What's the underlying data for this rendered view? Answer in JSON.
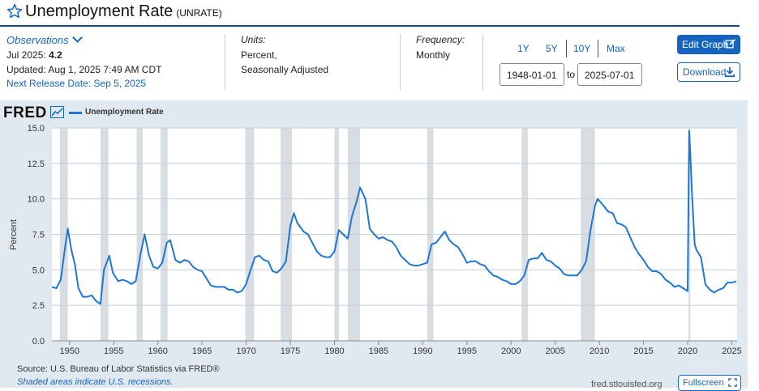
{
  "header": {
    "title": "Unemployment Rate",
    "series_code": "(UNRATE)"
  },
  "observations": {
    "label": "Observations",
    "latest_period": "Jul 2025:",
    "latest_value": "4.2",
    "updated": "Updated: Aug 1, 2025 7:49 AM CDT",
    "next_release": "Next Release Date: Sep 5, 2025"
  },
  "units": {
    "label": "Units:",
    "line1": "Percent,",
    "line2": "Seasonally Adjusted"
  },
  "frequency": {
    "label": "Frequency:",
    "value": "Monthly"
  },
  "range": {
    "buttons": [
      "1Y",
      "5Y",
      "10Y",
      "Max"
    ],
    "start": "1948-01-01",
    "to": "to",
    "end": "2025-07-01"
  },
  "actions": {
    "edit_label": "Edit Graph",
    "download_label": "Download",
    "fullscreen_label": "Fullscreen"
  },
  "footer": {
    "source": "Source: U.S. Bureau of Labor Statistics via FRED®",
    "shaded_note": "Shaded areas indicate U.S. recessions.",
    "site": "fred.stlouisfed.org"
  },
  "logo": "FRED",
  "colors": {
    "line": "#1f77d4",
    "accent": "#1565c0",
    "panel": "#e1e9f0",
    "recession": "#d8dde2"
  },
  "chart_data": {
    "type": "line",
    "ylabel": "Percent",
    "ylim": [
      0,
      15
    ],
    "xlim": [
      1948.0,
      2025.6
    ],
    "y_ticks": [
      "0.0",
      "2.5",
      "5.0",
      "7.5",
      "10.0",
      "12.5",
      "15.0"
    ],
    "x_ticks": [
      "1950",
      "1955",
      "1960",
      "1965",
      "1970",
      "1975",
      "1980",
      "1985",
      "1990",
      "1995",
      "2000",
      "2005",
      "2010",
      "2015",
      "2020",
      "2025"
    ],
    "grid": "horizontal",
    "legend": "top-left",
    "recessions": [
      [
        1948.9,
        1949.8
      ],
      [
        1953.5,
        1954.4
      ],
      [
        1957.6,
        1958.3
      ],
      [
        1960.3,
        1961.1
      ],
      [
        1969.9,
        1970.9
      ],
      [
        1973.9,
        1975.2
      ],
      [
        1980.0,
        1980.5
      ],
      [
        1981.5,
        1982.9
      ],
      [
        1990.5,
        1991.2
      ],
      [
        2001.2,
        2001.9
      ],
      [
        2007.9,
        2009.5
      ],
      [
        2020.1,
        2020.3
      ]
    ],
    "series": [
      {
        "name": "Unemployment Rate",
        "x": [
          1948.0,
          1948.5,
          1949.0,
          1949.5,
          1949.8,
          1950.2,
          1950.6,
          1951.0,
          1951.5,
          1952.0,
          1952.5,
          1953.0,
          1953.5,
          1953.9,
          1954.5,
          1954.9,
          1955.5,
          1956.0,
          1956.5,
          1957.0,
          1957.5,
          1958.0,
          1958.5,
          1959.0,
          1959.5,
          1960.0,
          1960.5,
          1961.0,
          1961.4,
          1962.0,
          1962.5,
          1963.0,
          1963.5,
          1964.0,
          1964.5,
          1965.0,
          1965.5,
          1966.0,
          1966.5,
          1967.0,
          1967.5,
          1968.0,
          1968.5,
          1969.0,
          1969.5,
          1970.0,
          1970.5,
          1971.0,
          1971.5,
          1972.0,
          1972.5,
          1973.0,
          1973.5,
          1974.0,
          1974.5,
          1975.0,
          1975.4,
          1975.8,
          1976.5,
          1977.0,
          1977.5,
          1978.0,
          1978.5,
          1979.0,
          1979.5,
          1980.0,
          1980.5,
          1981.0,
          1981.5,
          1982.0,
          1982.5,
          1982.9,
          1983.5,
          1984.0,
          1984.5,
          1985.0,
          1985.5,
          1986.0,
          1986.5,
          1987.0,
          1987.5,
          1988.0,
          1988.5,
          1989.0,
          1989.5,
          1990.0,
          1990.5,
          1991.0,
          1991.5,
          1992.0,
          1992.5,
          1993.0,
          1993.5,
          1994.0,
          1994.5,
          1995.0,
          1995.5,
          1996.0,
          1996.5,
          1997.0,
          1997.5,
          1998.0,
          1998.5,
          1999.0,
          1999.5,
          2000.0,
          2000.5,
          2001.0,
          2001.5,
          2002.0,
          2002.5,
          2003.0,
          2003.5,
          2004.0,
          2004.5,
          2005.0,
          2005.5,
          2006.0,
          2006.5,
          2007.0,
          2007.5,
          2008.0,
          2008.5,
          2009.0,
          2009.5,
          2009.8,
          2010.5,
          2011.0,
          2011.5,
          2012.0,
          2012.5,
          2013.0,
          2013.5,
          2014.0,
          2014.5,
          2015.0,
          2015.5,
          2016.0,
          2016.5,
          2017.0,
          2017.5,
          2018.0,
          2018.5,
          2019.0,
          2019.5,
          2020.0,
          2020.17,
          2020.3,
          2020.5,
          2020.8,
          2021.0,
          2021.5,
          2022.0,
          2022.5,
          2023.0,
          2023.5,
          2024.0,
          2024.5,
          2025.0,
          2025.5
        ],
        "values": [
          3.8,
          3.7,
          4.3,
          6.6,
          7.9,
          6.4,
          5.4,
          3.7,
          3.1,
          3.1,
          3.2,
          2.8,
          2.6,
          5.0,
          6.0,
          4.8,
          4.2,
          4.3,
          4.2,
          4.0,
          4.2,
          6.0,
          7.5,
          6.0,
          5.2,
          5.1,
          5.5,
          6.9,
          7.1,
          5.7,
          5.5,
          5.7,
          5.6,
          5.2,
          5.0,
          4.9,
          4.4,
          3.9,
          3.8,
          3.8,
          3.8,
          3.6,
          3.6,
          3.4,
          3.5,
          4.0,
          5.0,
          5.9,
          6.0,
          5.7,
          5.6,
          4.9,
          4.8,
          5.1,
          5.6,
          8.1,
          9.0,
          8.3,
          7.7,
          7.5,
          6.9,
          6.3,
          6.0,
          5.9,
          5.9,
          6.3,
          7.8,
          7.5,
          7.2,
          8.8,
          9.8,
          10.8,
          10.0,
          7.9,
          7.5,
          7.2,
          7.3,
          7.1,
          7.0,
          6.6,
          6.0,
          5.7,
          5.4,
          5.3,
          5.3,
          5.4,
          5.5,
          6.8,
          6.9,
          7.3,
          7.7,
          7.1,
          6.8,
          6.6,
          6.1,
          5.5,
          5.6,
          5.6,
          5.4,
          5.3,
          4.9,
          4.6,
          4.5,
          4.3,
          4.2,
          4.0,
          4.0,
          4.2,
          4.6,
          5.7,
          5.8,
          5.8,
          6.2,
          5.7,
          5.6,
          5.3,
          5.1,
          4.7,
          4.6,
          4.6,
          4.6,
          5.0,
          5.6,
          7.8,
          9.5,
          10.0,
          9.5,
          9.1,
          9.0,
          8.3,
          8.2,
          8.0,
          7.3,
          6.6,
          6.1,
          5.7,
          5.2,
          4.9,
          4.9,
          4.7,
          4.3,
          4.1,
          3.8,
          3.9,
          3.7,
          3.5,
          14.8,
          13.2,
          10.2,
          6.8,
          6.4,
          5.9,
          4.0,
          3.6,
          3.4,
          3.6,
          3.7,
          4.1,
          4.1,
          4.2
        ]
      }
    ]
  }
}
